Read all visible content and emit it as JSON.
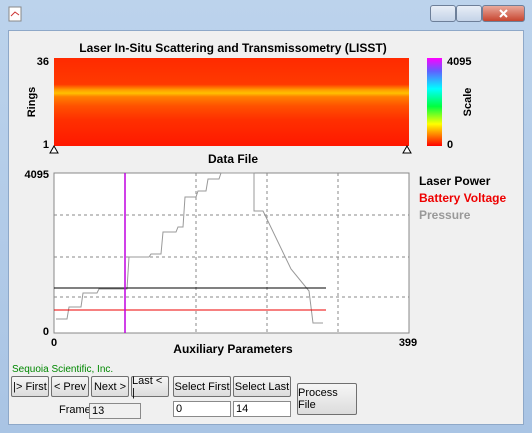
{
  "top_chart": {
    "title": "Laser In-Situ Scattering and Transmissometry (LISST)",
    "y_label": "Rings",
    "y_max": "36",
    "y_min": "1",
    "x_label": "Data File",
    "scale_label": "Scale",
    "scale_max": "4095",
    "scale_min": "0"
  },
  "bottom_chart": {
    "y_max": "4095",
    "y_min": "0",
    "x_min": "0",
    "x_max": "399",
    "x_label": "Auxiliary Parameters",
    "legend": [
      "Laser Power",
      "Battery Voltage",
      "Pressure"
    ]
  },
  "status": "Sequoia Scientific, Inc.",
  "buttons": {
    "first": "|> First",
    "prev": "< Prev",
    "next": "Next >",
    "last": "Last < |",
    "select_first": "Select First",
    "select_last": "Select Last",
    "process": "Process File"
  },
  "frame_label": "Frame",
  "frame_value": "13",
  "select_first_value": "0",
  "select_last_value": "14"
}
